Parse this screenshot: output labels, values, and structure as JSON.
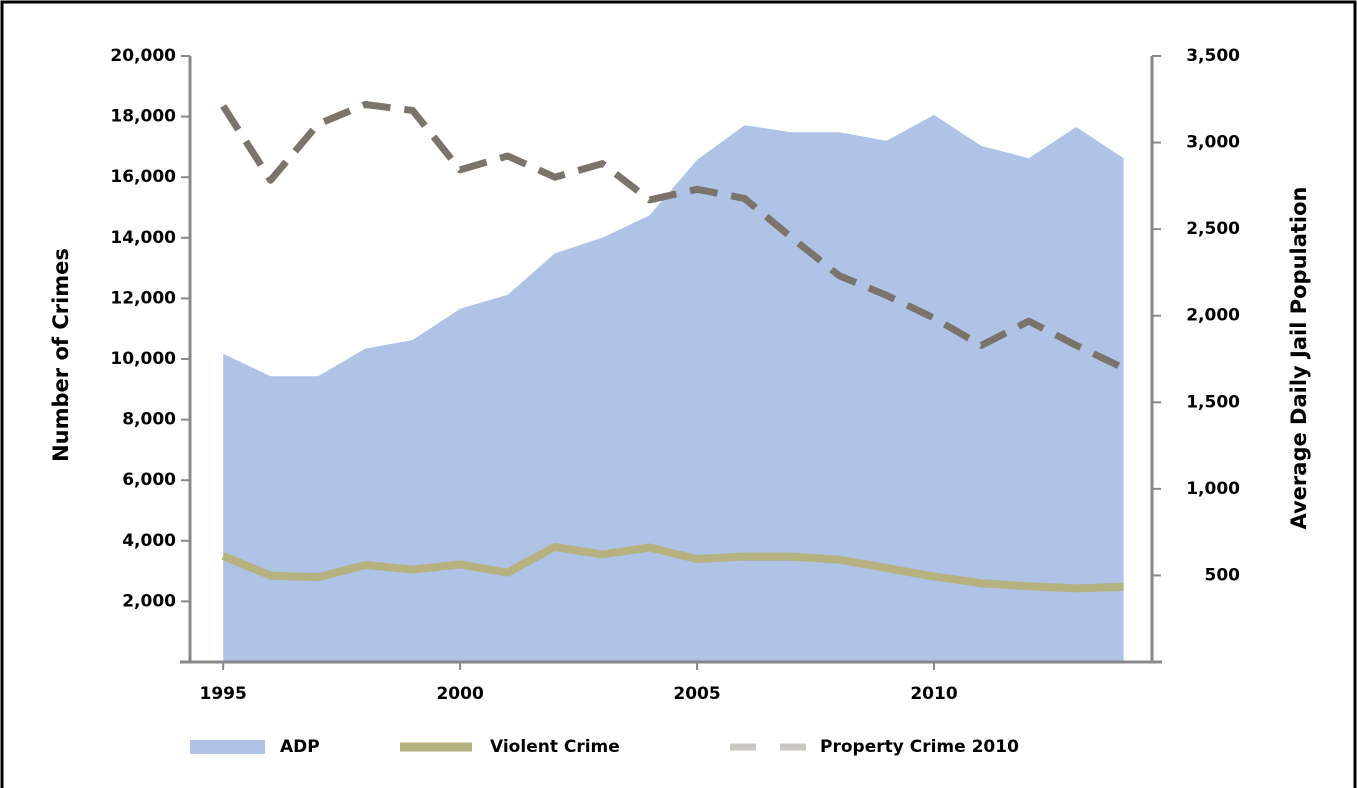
{
  "chart_data": {
    "type": "line",
    "y_label": "Number of Crimes",
    "y2_label": "Average Daily Jail Population",
    "x": [
      1995,
      1996,
      1997,
      1998,
      1999,
      2000,
      2001,
      2002,
      2003,
      2004,
      2005,
      2006,
      2007,
      2008,
      2009,
      2010,
      2011,
      2012,
      2013,
      2014
    ],
    "xlim": [
      1994.3,
      2014.6
    ],
    "xticks": [
      1995,
      2000,
      2005,
      2010
    ],
    "ylim": [
      0,
      20000
    ],
    "yticks": [
      {
        "value": 2000,
        "label": "2,000"
      },
      {
        "value": 4000,
        "label": "4,000"
      },
      {
        "value": 6000,
        "label": "6,000"
      },
      {
        "value": 8000,
        "label": "8,000"
      },
      {
        "value": 10000,
        "label": "10,000"
      },
      {
        "value": 12000,
        "label": "12,000"
      },
      {
        "value": 14000,
        "label": "14,000"
      },
      {
        "value": 16000,
        "label": "16,000"
      },
      {
        "value": 18000,
        "label": "18,000"
      },
      {
        "value": 20000,
        "label": "20,000"
      }
    ],
    "y2lim": [
      0,
      3500
    ],
    "y2ticks": [
      500,
      {
        "value": 1000,
        "label": "1,000"
      },
      {
        "value": 1500,
        "label": "1,500"
      },
      {
        "value": 2000,
        "label": "2,000"
      },
      {
        "value": 2500,
        "label": "2,500"
      },
      {
        "value": 3000,
        "label": "3,000"
      },
      {
        "value": 3500,
        "label": "3,500"
      }
    ],
    "legend": "bottom",
    "series": [
      {
        "name": "ADP",
        "color": "#aec3e6",
        "style": "area",
        "axis": "y2",
        "values": [
          1780,
          1650,
          1650,
          1810,
          1860,
          2040,
          2120,
          2360,
          2450,
          2580,
          2900,
          3100,
          3060,
          3060,
          3010,
          3160,
          2980,
          2910,
          3090,
          2910
        ]
      },
      {
        "name": "Violent Crime",
        "color": "#b5b27f",
        "style": "solid",
        "values": [
          3500,
          2850,
          2800,
          3200,
          3050,
          3220,
          2950,
          3800,
          3550,
          3780,
          3400,
          3480,
          3480,
          3380,
          3100,
          2820,
          2600,
          2500,
          2430,
          2480
        ]
      },
      {
        "name": "Property Crime 2010",
        "color": "#7a746a",
        "style": "dashed",
        "values": [
          18350,
          15900,
          17750,
          18400,
          18200,
          16240,
          16700,
          16000,
          16450,
          15250,
          15600,
          15300,
          14000,
          12750,
          12100,
          11350,
          10450,
          11250,
          10450,
          9700
        ]
      }
    ]
  }
}
